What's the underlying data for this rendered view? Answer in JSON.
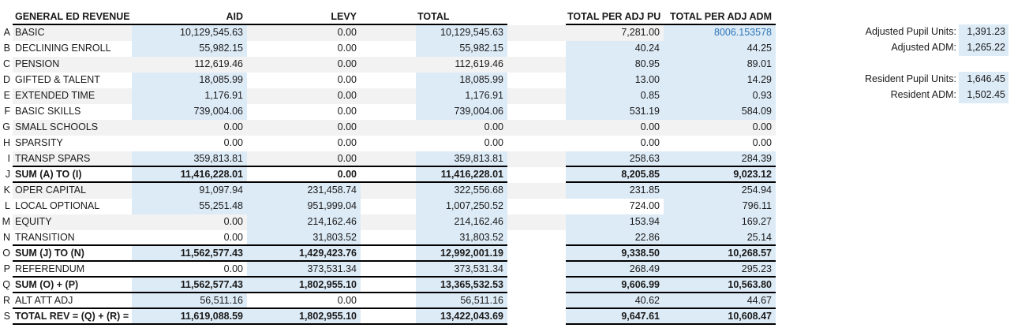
{
  "colors": {
    "cell_fill_blue": "#DDEBF7",
    "row_stripe_gray": "#F2F2F2",
    "formula_blue_text": "#2E75B6",
    "border_black": "#000000"
  },
  "table": {
    "headers": {
      "revenue": "GENERAL ED REVENUE",
      "aid": "AID",
      "levy": "LEVY",
      "total": "TOTAL",
      "per_pu": "TOTAL PER ADJ PU",
      "per_adm": "TOTAL PER ADJ ADM"
    },
    "rows": [
      {
        "letter": "A",
        "label": "BASIC",
        "aid": "10,129,545.63",
        "levy": "0.00",
        "total": "10,129,545.63",
        "per_pu": "7,281.00",
        "per_adm": "8006.153578",
        "stripe": true,
        "bold": false,
        "border": false,
        "fills": [
          "b",
          "",
          "b",
          "",
          "b"
        ],
        "adm_blue_text": true
      },
      {
        "letter": "B",
        "label": "DECLINING ENROLL",
        "aid": "55,982.15",
        "levy": "0.00",
        "total": "55,982.15",
        "per_pu": "40.24",
        "per_adm": "44.25",
        "stripe": false,
        "bold": false,
        "border": false,
        "fills": [
          "b",
          "",
          "b",
          "b",
          "b"
        ]
      },
      {
        "letter": "C",
        "label": "PENSION",
        "aid": "112,619.46",
        "levy": "0.00",
        "total": "112,619.46",
        "per_pu": "80.95",
        "per_adm": "89.01",
        "stripe": true,
        "bold": false,
        "border": false,
        "fills": [
          "",
          "",
          "",
          "b",
          "b"
        ]
      },
      {
        "letter": "D",
        "label": "GIFTED & TALENT",
        "aid": "18,085.99",
        "levy": "0.00",
        "total": "18,085.99",
        "per_pu": "13.00",
        "per_adm": "14.29",
        "stripe": false,
        "bold": false,
        "border": false,
        "fills": [
          "b",
          "",
          "b",
          "b",
          "b"
        ]
      },
      {
        "letter": "E",
        "label": "EXTENDED TIME",
        "aid": "1,176.91",
        "levy": "0.00",
        "total": "1,176.91",
        "per_pu": "0.85",
        "per_adm": "0.93",
        "stripe": true,
        "bold": false,
        "border": false,
        "fills": [
          "b",
          "",
          "b",
          "b",
          "b"
        ]
      },
      {
        "letter": "F",
        "label": "BASIC SKILLS",
        "aid": "739,004.06",
        "levy": "0.00",
        "total": "739,004.06",
        "per_pu": "531.19",
        "per_adm": "584.09",
        "stripe": false,
        "bold": false,
        "border": false,
        "fills": [
          "b",
          "",
          "b",
          "b",
          "b"
        ]
      },
      {
        "letter": "G",
        "label": "SMALL SCHOOLS",
        "aid": "0.00",
        "levy": "0.00",
        "total": "0.00",
        "per_pu": "0.00",
        "per_adm": "0.00",
        "stripe": true,
        "bold": false,
        "border": false,
        "fills": [
          "",
          "",
          "",
          "",
          ""
        ]
      },
      {
        "letter": "H",
        "label": "SPARSITY",
        "aid": "0.00",
        "levy": "0.00",
        "total": "0.00",
        "per_pu": "0.00",
        "per_adm": "0.00",
        "stripe": false,
        "bold": false,
        "border": false,
        "fills": [
          "",
          "",
          "",
          "",
          ""
        ]
      },
      {
        "letter": "I",
        "label": "TRANSP SPARS",
        "aid": "359,813.81",
        "levy": "0.00",
        "total": "359,813.81",
        "per_pu": "258.63",
        "per_adm": "284.39",
        "stripe": true,
        "bold": false,
        "border": true,
        "fills": [
          "b",
          "",
          "b",
          "b",
          "b"
        ]
      },
      {
        "letter": "J",
        "label": "SUM (A) TO (I)",
        "aid": "11,416,228.01",
        "levy": "0.00",
        "total": "11,416,228.01",
        "per_pu": "8,205.85",
        "per_adm": "9,023.12",
        "stripe": false,
        "bold": true,
        "border": true,
        "fills": [
          "b",
          "",
          "b",
          "b",
          "b"
        ]
      },
      {
        "letter": "K",
        "label": "OPER CAPITAL",
        "aid": "91,097.94",
        "levy": "231,458.74",
        "total": "322,556.68",
        "per_pu": "231.85",
        "per_adm": "254.94",
        "stripe": true,
        "bold": false,
        "border": false,
        "fills": [
          "b",
          "b",
          "b",
          "b",
          "b"
        ]
      },
      {
        "letter": "L",
        "label": "LOCAL OPTIONAL",
        "aid": "55,251.48",
        "levy": "951,999.04",
        "total": "1,007,250.52",
        "per_pu": "724.00",
        "per_adm": "796.11",
        "stripe": false,
        "bold": false,
        "border": false,
        "fills": [
          "b",
          "b",
          "b",
          "",
          "b"
        ]
      },
      {
        "letter": "M",
        "label": "EQUITY",
        "aid": "0.00",
        "levy": "214,162.46",
        "total": "214,162.46",
        "per_pu": "153.94",
        "per_adm": "169.27",
        "stripe": true,
        "bold": false,
        "border": false,
        "fills": [
          "",
          "b",
          "b",
          "b",
          "b"
        ]
      },
      {
        "letter": "N",
        "label": "TRANSITION",
        "aid": "0.00",
        "levy": "31,803.52",
        "total": "31,803.52",
        "per_pu": "22.86",
        "per_adm": "25.14",
        "stripe": false,
        "bold": false,
        "border": true,
        "fills": [
          "",
          "b",
          "b",
          "b",
          "b"
        ]
      },
      {
        "letter": "O",
        "label": "SUM (J) TO (N)",
        "aid": "11,562,577.43",
        "levy": "1,429,423.76",
        "total": "12,992,001.19",
        "per_pu": "9,338.50",
        "per_adm": "10,268.57",
        "stripe": false,
        "bold": true,
        "border": true,
        "fills": [
          "b",
          "b",
          "b",
          "b",
          "b"
        ]
      },
      {
        "letter": "P",
        "label": "REFERENDUM",
        "aid": "0.00",
        "levy": "373,531.34",
        "total": "373,531.34",
        "per_pu": "268.49",
        "per_adm": "295.23",
        "stripe": false,
        "bold": false,
        "border": true,
        "fills": [
          "",
          "b",
          "b",
          "b",
          "b"
        ]
      },
      {
        "letter": "Q",
        "label": "SUM (O) + (P)",
        "aid": "11,562,577.43",
        "levy": "1,802,955.10",
        "total": "13,365,532.53",
        "per_pu": "9,606.99",
        "per_adm": "10,563.80",
        "stripe": false,
        "bold": true,
        "border": true,
        "fills": [
          "b",
          "b",
          "b",
          "b",
          "b"
        ]
      },
      {
        "letter": "R",
        "label": "ALT ATT ADJ",
        "aid": "56,511.16",
        "levy": "0.00",
        "total": "56,511.16",
        "per_pu": "40.62",
        "per_adm": "44.67",
        "stripe": false,
        "bold": false,
        "border": true,
        "fills": [
          "b",
          "",
          "b",
          "b",
          "b"
        ]
      },
      {
        "letter": "S",
        "label": "TOTAL REV = (Q) + (R) =",
        "aid": "11,619,088.59",
        "levy": "1,802,955.10",
        "total": "13,422,043.69",
        "per_pu": "9,647.61",
        "per_adm": "10,608.47",
        "stripe": false,
        "bold": true,
        "border": true,
        "fills": [
          "b",
          "b",
          "b",
          "b",
          "b"
        ]
      }
    ]
  },
  "side_panel": {
    "items": [
      {
        "label": "Adjusted Pupil Units:",
        "value": "1,391.23"
      },
      {
        "label": "Adjusted ADM:",
        "value": "1,265.22"
      },
      {
        "label": "Resident Pupil Units:",
        "value": "1,646.45"
      },
      {
        "label": "Resident ADM:",
        "value": "1,502.45"
      }
    ]
  }
}
